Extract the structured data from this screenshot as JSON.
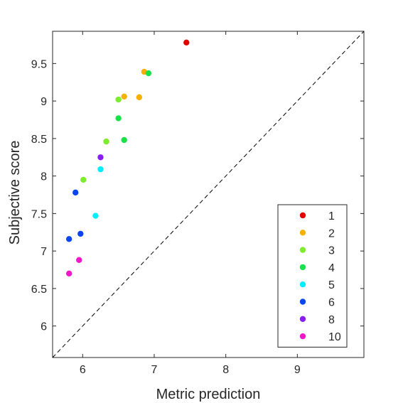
{
  "chart_data": {
    "type": "scatter",
    "xlabel": "Metric prediction",
    "ylabel": "Subjective score",
    "xlim": [
      5.58,
      9.93
    ],
    "ylim": [
      5.58,
      9.93
    ],
    "xticks": [
      6,
      7,
      8,
      9
    ],
    "yticks": [
      6,
      6.5,
      7,
      7.5,
      8,
      8.5,
      9,
      9.5
    ],
    "xtick_labels": [
      "6",
      "7",
      "8",
      "9"
    ],
    "ytick_labels": [
      "6",
      "6.5",
      "7",
      "7.5",
      "8",
      "8.5",
      "9",
      "9.5"
    ],
    "grid": false,
    "reference_line": "y = x (dashed)",
    "legend_position": "bottom-right",
    "series": [
      {
        "name": "1",
        "color": "#e00000",
        "points": [
          [
            7.45,
            9.78
          ]
        ]
      },
      {
        "name": "2",
        "color": "#f5b000",
        "points": [
          [
            6.86,
            9.39
          ],
          [
            6.58,
            9.06
          ],
          [
            6.79,
            9.05
          ]
        ]
      },
      {
        "name": "3",
        "color": "#7cec2c",
        "points": [
          [
            6.5,
            9.02
          ],
          [
            6.33,
            8.46
          ],
          [
            6.01,
            7.95
          ]
        ]
      },
      {
        "name": "4",
        "color": "#17e24a",
        "points": [
          [
            6.92,
            9.37
          ],
          [
            6.5,
            8.77
          ],
          [
            6.58,
            8.48
          ]
        ]
      },
      {
        "name": "5",
        "color": "#00eeff",
        "points": [
          [
            6.25,
            8.09
          ],
          [
            6.18,
            7.47
          ]
        ]
      },
      {
        "name": "6",
        "color": "#0a45f0",
        "points": [
          [
            5.9,
            7.78
          ],
          [
            5.97,
            7.23
          ],
          [
            5.81,
            7.16
          ]
        ]
      },
      {
        "name": "8",
        "color": "#8a1ef0",
        "points": [
          [
            6.25,
            8.25
          ]
        ]
      },
      {
        "name": "10",
        "color": "#f018c8",
        "points": [
          [
            5.95,
            6.88
          ],
          [
            5.81,
            6.7
          ]
        ]
      }
    ]
  }
}
